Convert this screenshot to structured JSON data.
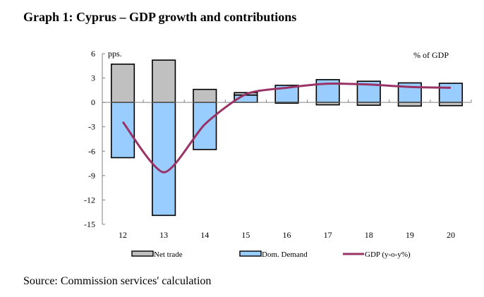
{
  "title": "Graph 1: Cyprus – GDP growth and contributions",
  "source": "Source: Commission services' calculation",
  "chart_data": {
    "type": "bar",
    "subtype": "stacked-bar-with-line",
    "title": "Graph 1: Cyprus – GDP growth and contributions",
    "ylabel": "pps.",
    "annotation": "% of GDP",
    "xlabel": "",
    "categories": [
      "12",
      "13",
      "14",
      "15",
      "16",
      "17",
      "18",
      "19",
      "20"
    ],
    "yticks": [
      "6",
      "3",
      "0",
      "-3",
      "-6",
      "-9",
      "-12",
      "-15"
    ],
    "ylim": [
      -15,
      6
    ],
    "grid": false,
    "legend_position": "bottom",
    "colors": {
      "net_trade": "#c0c0c0",
      "dom_demand": "#99ccff",
      "gdp": "#993366",
      "bar_outline": "#000000"
    },
    "series": [
      {
        "name": "Net trade",
        "kind": "bar",
        "values": [
          4.7,
          5.2,
          1.6,
          0.3,
          -0.1,
          -0.3,
          -0.35,
          -0.45,
          -0.4
        ]
      },
      {
        "name": "Dom. Demand",
        "kind": "bar",
        "values": [
          -6.8,
          -13.9,
          -5.8,
          0.9,
          2.1,
          2.8,
          2.6,
          2.4,
          2.35
        ]
      },
      {
        "name": "GDP (y-o-y%)",
        "kind": "line",
        "values": [
          -2.4,
          -8.6,
          -2.7,
          1.0,
          1.8,
          2.3,
          2.2,
          1.9,
          1.8
        ]
      }
    ]
  }
}
